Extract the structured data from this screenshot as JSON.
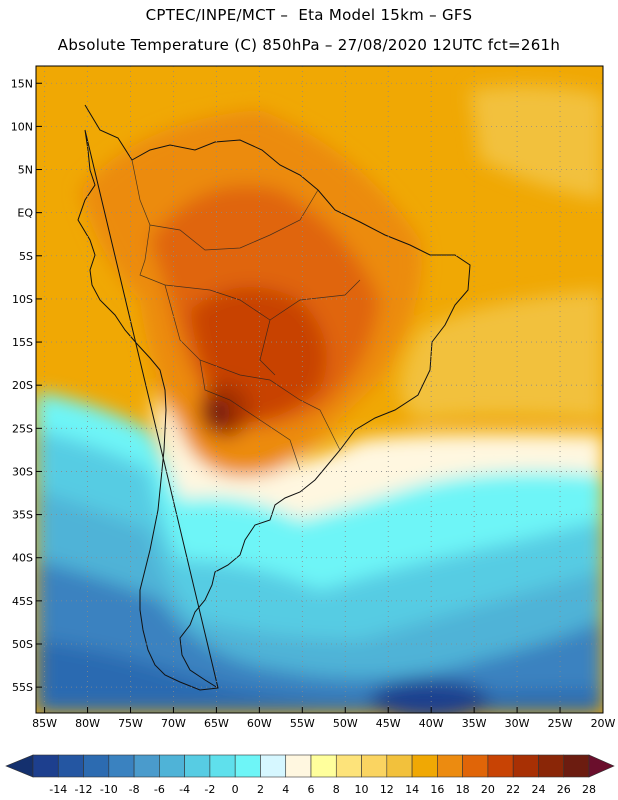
{
  "header": {
    "line1": "CPTEC/INPE/MCT –  Eta Model 15km – GFS",
    "line2": "Absolute Temperature (C) 850hPa – 27/08/2020 12UTC fct=261h"
  },
  "map": {
    "lat_labels": [
      "15N",
      "10N",
      "5N",
      "EQ",
      "5S",
      "10S",
      "15S",
      "20S",
      "25S",
      "30S",
      "35S",
      "40S",
      "45S",
      "50S",
      "55S"
    ],
    "lat_values": [
      15,
      10,
      5,
      0,
      -5,
      -10,
      -15,
      -20,
      -25,
      -30,
      -35,
      -40,
      -45,
      -50,
      -55
    ],
    "lon_labels": [
      "85W",
      "80W",
      "75W",
      "70W",
      "65W",
      "60W",
      "55W",
      "50W",
      "45W",
      "40W",
      "35W",
      "30W",
      "25W",
      "20W"
    ],
    "lon_values": [
      -85,
      -80,
      -75,
      -70,
      -65,
      -60,
      -55,
      -50,
      -45,
      -40,
      -35,
      -30,
      -25,
      -20
    ],
    "lat_range": [
      -58,
      17
    ],
    "lon_range": [
      -86,
      -20
    ],
    "grid_lines": "dotted"
  },
  "colorbar": {
    "labels": [
      "-14",
      "-12",
      "-10",
      "-8",
      "-6",
      "-4",
      "-2",
      "0",
      "2",
      "4",
      "6",
      "8",
      "10",
      "12",
      "14",
      "16",
      "18",
      "20",
      "22",
      "24",
      "26",
      "28"
    ],
    "colors": [
      "#1d3f8e",
      "#2456a2",
      "#2c6bb1",
      "#3a82c0",
      "#4a9bcc",
      "#4fb3d7",
      "#57cce3",
      "#5fe0ec",
      "#6ef5f7",
      "#d6f7ff",
      "#fff7e0",
      "#ffff9c",
      "#fde37a",
      "#fad461",
      "#f2c13c",
      "#f0a804",
      "#ec8b10",
      "#e06508",
      "#c84304",
      "#a83004",
      "#8a2607",
      "#6c1c10"
    ],
    "underflow_color": "#14306e",
    "overflow_color": "#6a0e2c"
  }
}
